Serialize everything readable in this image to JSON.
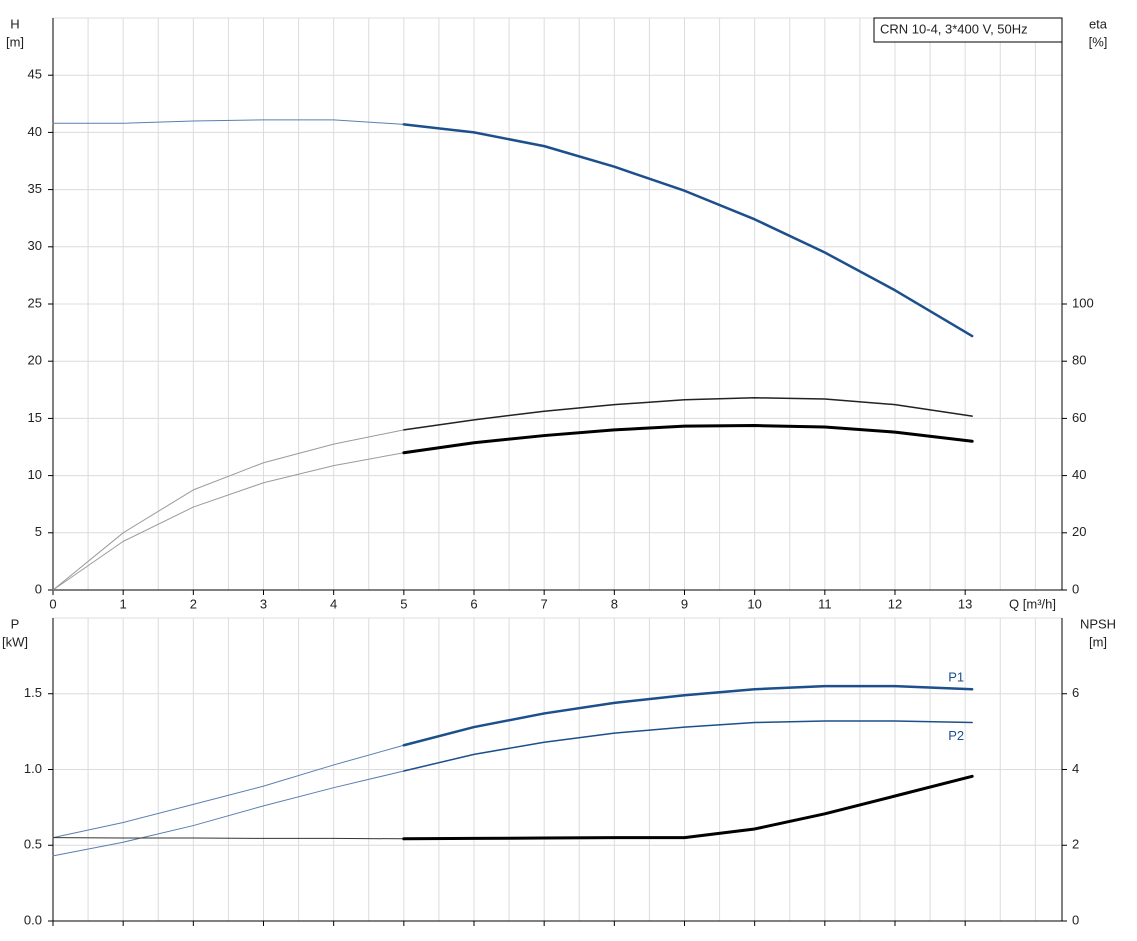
{
  "chart_data": [
    {
      "type": "line",
      "title": "CRN 10-4, 3*400 V, 50Hz",
      "ylabel": "H",
      "yunit": "[m]",
      "y2label": "eta",
      "y2unit": "[%]",
      "xlabel": "Q [m³/h]",
      "x": [
        0,
        1,
        2,
        3,
        4,
        5,
        6,
        7,
        8,
        9,
        10,
        11,
        12,
        13.1
      ],
      "xlim": [
        0,
        14.38
      ],
      "xticks": [
        0,
        1,
        2,
        3,
        4,
        5,
        6,
        7,
        8,
        9,
        10,
        11,
        12,
        13
      ],
      "xtick_labels": true,
      "ylim": [
        0,
        50
      ],
      "yticks": [
        0,
        5,
        10,
        15,
        20,
        25,
        30,
        35,
        40,
        45
      ],
      "y2lim": [
        0,
        200
      ],
      "y2ticks": [
        0,
        20,
        40,
        60,
        80,
        100
      ],
      "grid": true,
      "series": [
        {
          "color": "#5a7fb0",
          "width": 1,
          "values": [
            40.8,
            40.8,
            41.0,
            41.1,
            41.1,
            40.7,
            null,
            null,
            null,
            null,
            null,
            null,
            null,
            null
          ]
        },
        {
          "color": "#1c4f8c",
          "width": 2.5,
          "values": [
            null,
            null,
            null,
            null,
            null,
            40.7,
            40.0,
            38.8,
            37.0,
            34.9,
            32.4,
            29.5,
            26.2,
            22.2
          ]
        },
        {
          "color": "#9a9a9a",
          "width": 1,
          "axis": "y2",
          "values": [
            0,
            20,
            35,
            44.5,
            51,
            56,
            null,
            null,
            null,
            null,
            null,
            null,
            null,
            null
          ]
        },
        {
          "color": "#222222",
          "width": 1.5,
          "axis": "y2",
          "values": [
            null,
            null,
            null,
            null,
            null,
            56,
            59.5,
            62.5,
            64.8,
            66.5,
            67.2,
            66.8,
            64.8,
            60.8
          ]
        },
        {
          "color": "#9a9a9a",
          "width": 1,
          "axis": "y2",
          "values": [
            0,
            17,
            29,
            37.5,
            43.5,
            48,
            null,
            null,
            null,
            null,
            null,
            null,
            null,
            null
          ]
        },
        {
          "color": "#000000",
          "width": 3,
          "axis": "y2",
          "values": [
            null,
            null,
            null,
            null,
            null,
            48,
            51.5,
            54,
            56,
            57.3,
            57.5,
            57,
            55.2,
            52
          ]
        }
      ]
    },
    {
      "type": "line",
      "ylabel": "P",
      "yunit": "[kW]",
      "y2label": "NPSH",
      "y2unit": "[m]",
      "x": [
        0,
        1,
        2,
        3,
        4,
        5,
        6,
        7,
        8,
        9,
        10,
        11,
        12,
        13.1
      ],
      "xlim": [
        0,
        14.38
      ],
      "xticks": [
        0,
        1,
        2,
        3,
        4,
        5,
        6,
        7,
        8,
        9,
        10,
        11,
        12,
        13
      ],
      "xtick_labels": false,
      "ylim": [
        0,
        2
      ],
      "yticks": [
        {
          "value": 0,
          "label": "0.0"
        },
        0.5,
        {
          "value": 1,
          "label": "1.0"
        },
        1.5
      ],
      "y2lim": [
        0,
        8
      ],
      "y2ticks": [
        0,
        2,
        4,
        6
      ],
      "grid": true,
      "series": [
        {
          "color": "#5a7fb0",
          "width": 1,
          "values": [
            0.55,
            0.65,
            0.77,
            0.89,
            1.03,
            1.16,
            null,
            null,
            null,
            null,
            null,
            null,
            null,
            null
          ]
        },
        {
          "name": "P1",
          "label_side": "above",
          "color": "#1c4f8c",
          "width": 2.5,
          "values": [
            null,
            null,
            null,
            null,
            null,
            1.16,
            1.28,
            1.37,
            1.44,
            1.49,
            1.53,
            1.55,
            1.55,
            1.53
          ]
        },
        {
          "color": "#5a7fb0",
          "width": 1,
          "values": [
            0.43,
            0.52,
            0.63,
            0.76,
            0.88,
            0.99,
            null,
            null,
            null,
            null,
            null,
            null,
            null,
            null
          ]
        },
        {
          "name": "P2",
          "label_side": "below",
          "color": "#1c4f8c",
          "width": 1.5,
          "values": [
            null,
            null,
            null,
            null,
            null,
            0.99,
            1.1,
            1.18,
            1.24,
            1.28,
            1.31,
            1.32,
            1.32,
            1.31
          ]
        },
        {
          "color": "#333333",
          "width": 1,
          "axis": "y2",
          "values": [
            2.2,
            2.19,
            2.19,
            2.18,
            2.18,
            2.17,
            null,
            null,
            null,
            null,
            null,
            null,
            null,
            null
          ]
        },
        {
          "color": "#000000",
          "width": 3,
          "axis": "y2",
          "values": [
            null,
            null,
            null,
            null,
            null,
            2.17,
            2.18,
            2.19,
            2.2,
            2.2,
            2.43,
            2.83,
            3.3,
            3.82
          ]
        }
      ]
    }
  ]
}
